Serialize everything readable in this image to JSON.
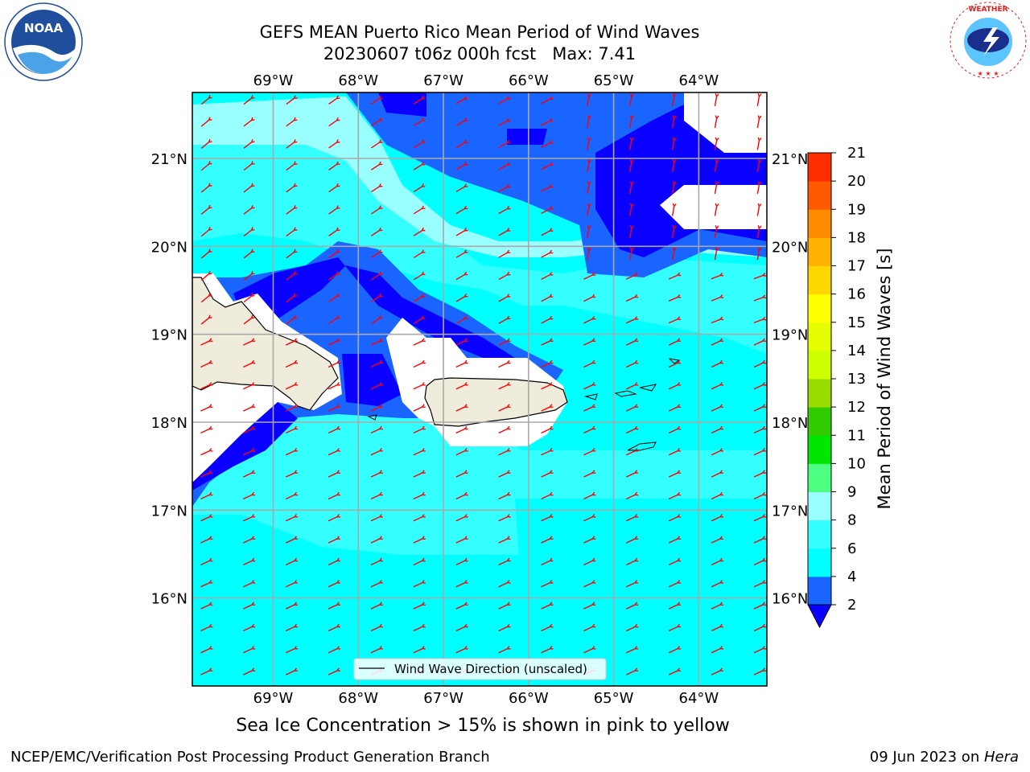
{
  "header": {
    "title_line1": "GEFS MEAN Puerto Rico Mean Period of Wind Waves",
    "title_line2": "20230607 t06z 000h fcst   Max: 7.41"
  },
  "logos": {
    "left_name": "noaa-logo",
    "left_text": "NOAA",
    "right_name": "national-weather-service-logo",
    "right_text": "NATIONAL WEATHER SERVICE"
  },
  "map": {
    "lon_labels": [
      "69°W",
      "68°W",
      "67°W",
      "66°W",
      "65°W",
      "64°W"
    ],
    "lat_labels": [
      "21°N",
      "20°N",
      "19°N",
      "18°N",
      "17°N",
      "16°N"
    ],
    "lon_values": [
      -69,
      -68,
      -67,
      -66,
      -65,
      -64
    ],
    "lat_values": [
      21,
      20,
      19,
      18,
      17,
      16
    ],
    "extent": {
      "lon_min": -69.95,
      "lon_max": -63.2,
      "lat_min": 15.0,
      "lat_max": 21.75
    },
    "legend_label": "Wind Wave Direction (unscaled)",
    "arrow_color": "#ff0000"
  },
  "colorbar": {
    "label": "Mean Period of Wind Waves [s]",
    "ticks": [
      "2",
      "4",
      "6",
      "8",
      "9",
      "10",
      "11",
      "12",
      "13",
      "14",
      "15",
      "16",
      "17",
      "18",
      "19",
      "20",
      "21"
    ],
    "colors": [
      "#1a64ff",
      "#00ffff",
      "#33ffff",
      "#99ffff",
      "#4dff80",
      "#00e600",
      "#33cc00",
      "#99dd00",
      "#ccff00",
      "#e6ff00",
      "#ffff00",
      "#ffd700",
      "#ffb300",
      "#ff8c00",
      "#ff5a00",
      "#ff2d00"
    ],
    "extend_color": "#0a00ff"
  },
  "note": "Sea Ice Concentration > 15% is shown in pink to yellow",
  "footer": {
    "left": "NCEP/EMC/Verification Post Processing Product Generation Branch",
    "date": "09 Jun 2023 on ",
    "machine": "Hera"
  }
}
